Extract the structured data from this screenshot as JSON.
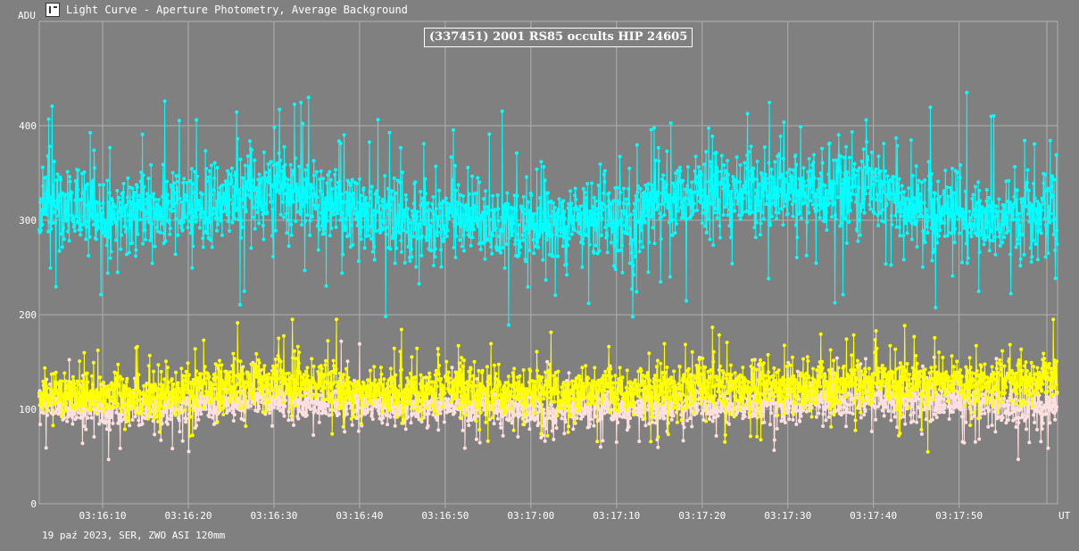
{
  "window": {
    "title": "Light Curve - Aperture Photometry, Average Background",
    "icon": "light-curve-app-icon"
  },
  "footer": {
    "note": "19 paź 2023, SER, ZWO ASI 120mm"
  },
  "colors": {
    "background": "#808080",
    "grid": "#b0b0b0",
    "target": "#00ffff",
    "comparison": "#ffff00",
    "background_series": "#ffe0e0",
    "text": "#ffffff"
  },
  "chart_data": {
    "type": "line",
    "title": "(337451) 2001 RS85 occults HIP 24605",
    "ylabel": "ADU",
    "xlabel": "UT",
    "x_range": [
      "03:16:02.6",
      "03:18:01.5"
    ],
    "ylim": [
      0,
      420
    ],
    "y_ticks": [
      0,
      100,
      200,
      300,
      400
    ],
    "x_ticks": [
      "03:16:10",
      "03:16:20",
      "03:16:30",
      "03:16:40",
      "03:16:50",
      "03:17:00",
      "03:17:10",
      "03:17:20",
      "03:17:30",
      "03:17:40",
      "03:17:50"
    ],
    "grid": true,
    "legend": "none",
    "frame_interval_s": 0.05,
    "series": [
      {
        "color": "#00ffff",
        "approx_mean_by_10s": [
          {
            "t": "03:16:02",
            "value": 320
          },
          {
            "t": "03:16:10",
            "value": 305
          },
          {
            "t": "03:16:20",
            "value": 310
          },
          {
            "t": "03:16:30",
            "value": 335
          },
          {
            "t": "03:16:40",
            "value": 305
          },
          {
            "t": "03:16:50",
            "value": 300
          },
          {
            "t": "03:17:00",
            "value": 295
          },
          {
            "t": "03:17:10",
            "value": 305
          },
          {
            "t": "03:17:20",
            "value": 330
          },
          {
            "t": "03:17:30",
            "value": 330
          },
          {
            "t": "03:17:40",
            "value": 330
          },
          {
            "t": "03:17:50",
            "value": 305
          },
          {
            "t": "03:18:01",
            "value": 300
          }
        ],
        "approx_spread": 35,
        "min": 178,
        "max": 435
      },
      {
        "color": "#ffff00",
        "approx_mean_by_10s": [
          {
            "t": "03:16:02",
            "value": 120
          },
          {
            "t": "03:16:10",
            "value": 115
          },
          {
            "t": "03:16:20",
            "value": 120
          },
          {
            "t": "03:16:30",
            "value": 135
          },
          {
            "t": "03:16:40",
            "value": 120
          },
          {
            "t": "03:16:50",
            "value": 125
          },
          {
            "t": "03:17:00",
            "value": 120
          },
          {
            "t": "03:17:10",
            "value": 120
          },
          {
            "t": "03:17:20",
            "value": 125
          },
          {
            "t": "03:17:30",
            "value": 125
          },
          {
            "t": "03:17:40",
            "value": 130
          },
          {
            "t": "03:17:50",
            "value": 130
          },
          {
            "t": "03:18:01",
            "value": 135
          }
        ],
        "approx_spread": 20,
        "min": 55,
        "max": 195
      },
      {
        "color": "#ffe0e0",
        "approx_mean_by_10s": [
          {
            "t": "03:16:02",
            "value": 110
          },
          {
            "t": "03:16:10",
            "value": 100
          },
          {
            "t": "03:16:20",
            "value": 105
          },
          {
            "t": "03:16:30",
            "value": 110
          },
          {
            "t": "03:16:40",
            "value": 105
          },
          {
            "t": "03:16:50",
            "value": 105
          },
          {
            "t": "03:17:00",
            "value": 100
          },
          {
            "t": "03:17:10",
            "value": 100
          },
          {
            "t": "03:17:20",
            "value": 105
          },
          {
            "t": "03:17:30",
            "value": 105
          },
          {
            "t": "03:17:40",
            "value": 110
          },
          {
            "t": "03:17:50",
            "value": 110
          },
          {
            "t": "03:18:01",
            "value": 100
          }
        ],
        "approx_spread": 16,
        "min": 25,
        "max": 190
      }
    ]
  }
}
